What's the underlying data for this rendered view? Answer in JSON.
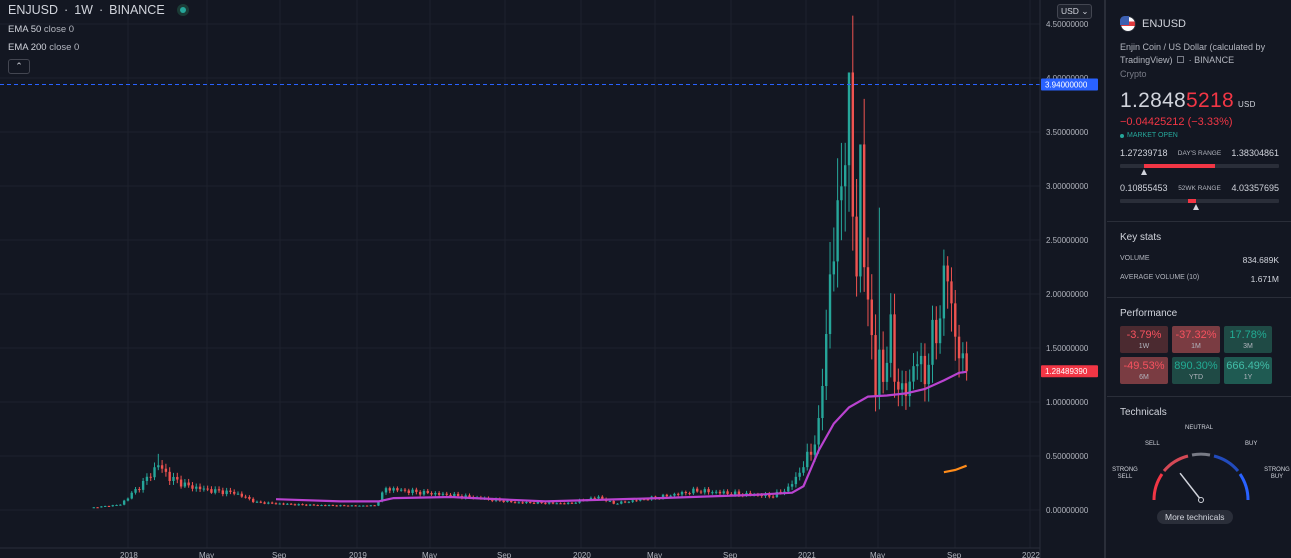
{
  "legend": {
    "symbol": "ENJUSD",
    "interval": "1W",
    "exchange": "BINANCE",
    "ema50_label": "EMA 50",
    "ema50_value": "close 0",
    "ema200_label": "EMA 200",
    "ema200_value": "close 0"
  },
  "currency_button": "USD",
  "price_axis": {
    "ticks": [
      "4.50000000",
      "4.00000000",
      "3.50000000",
      "3.00000000",
      "2.50000000",
      "2.00000000",
      "1.50000000",
      "1.00000000",
      "0.50000000",
      "0.00000000"
    ],
    "hline_label": "3.94000000",
    "current_label": "1.28489390"
  },
  "time_axis": {
    "labels": [
      "2018",
      "May",
      "Sep",
      "2019",
      "May",
      "Sep",
      "2020",
      "May",
      "Sep",
      "2021",
      "May",
      "Sep",
      "2022"
    ]
  },
  "colors": {
    "up": "#26a69a",
    "down": "#ef5350",
    "ema50": "#ba43d0",
    "ema200": "#ff8c1a",
    "hline": "#2962ff",
    "bg": "#131722"
  },
  "chart_data": {
    "type": "candlestick",
    "symbol": "ENJUSD",
    "interval": "1W",
    "y_range": [
      0,
      4.6
    ],
    "hline": 3.94,
    "last_price": 1.2849,
    "anchors": [
      {
        "w": 0,
        "c": 0.02
      },
      {
        "w": 8,
        "c": 0.05
      },
      {
        "w": 14,
        "c": 0.25
      },
      {
        "w": 18,
        "c": 0.42
      },
      {
        "w": 21,
        "c": 0.3
      },
      {
        "w": 26,
        "c": 0.22
      },
      {
        "w": 32,
        "c": 0.18
      },
      {
        "w": 38,
        "c": 0.16
      },
      {
        "w": 44,
        "c": 0.07
      },
      {
        "w": 54,
        "c": 0.05
      },
      {
        "w": 66,
        "c": 0.04
      },
      {
        "w": 75,
        "c": 0.04
      },
      {
        "w": 78,
        "c": 0.2
      },
      {
        "w": 85,
        "c": 0.17
      },
      {
        "w": 100,
        "c": 0.12
      },
      {
        "w": 112,
        "c": 0.07
      },
      {
        "w": 126,
        "c": 0.06
      },
      {
        "w": 134,
        "c": 0.12
      },
      {
        "w": 138,
        "c": 0.06
      },
      {
        "w": 150,
        "c": 0.12
      },
      {
        "w": 160,
        "c": 0.18
      },
      {
        "w": 170,
        "c": 0.15
      },
      {
        "w": 180,
        "c": 0.13
      },
      {
        "w": 184,
        "c": 0.2
      },
      {
        "w": 187,
        "c": 0.35
      },
      {
        "w": 190,
        "c": 0.55
      },
      {
        "w": 192,
        "c": 0.75
      },
      {
        "w": 194,
        "c": 1.7
      },
      {
        "w": 196,
        "c": 2.4
      },
      {
        "w": 198,
        "c": 3.1
      },
      {
        "w": 200,
        "c": 3.6
      },
      {
        "w": 202,
        "c": 2.3
      },
      {
        "w": 203,
        "c": 3.0
      },
      {
        "w": 204,
        "c": 2.4
      },
      {
        "w": 205,
        "c": 2.0
      },
      {
        "w": 206,
        "c": 1.55
      },
      {
        "w": 207,
        "c": 1.1
      },
      {
        "w": 208,
        "c": 1.4
      },
      {
        "w": 209,
        "c": 1.25
      },
      {
        "w": 211,
        "c": 1.6
      },
      {
        "w": 212,
        "c": 1.3
      },
      {
        "w": 214,
        "c": 1.05
      },
      {
        "w": 216,
        "c": 1.2
      },
      {
        "w": 218,
        "c": 1.4
      },
      {
        "w": 220,
        "c": 1.25
      },
      {
        "w": 222,
        "c": 1.55
      },
      {
        "w": 224,
        "c": 1.85
      },
      {
        "w": 226,
        "c": 2.25
      },
      {
        "w": 227,
        "c": 1.9
      },
      {
        "w": 228,
        "c": 1.6
      },
      {
        "w": 229,
        "c": 1.45
      },
      {
        "w": 230,
        "c": 1.33
      },
      {
        "w": 231,
        "c": 1.285
      }
    ],
    "spikes": [
      {
        "w": 200,
        "h": 4.03
      },
      {
        "w": 199,
        "h": 3.4
      },
      {
        "w": 203,
        "h": 3.25
      },
      {
        "w": 208,
        "h": 2.8
      },
      {
        "w": 18,
        "h": 0.52
      },
      {
        "w": 226,
        "h": 2.35
      }
    ],
    "ema50": [
      {
        "w": 49,
        "v": 0.1
      },
      {
        "w": 66,
        "v": 0.08
      },
      {
        "w": 76,
        "v": 0.08
      },
      {
        "w": 80,
        "v": 0.11
      },
      {
        "w": 95,
        "v": 0.12
      },
      {
        "w": 120,
        "v": 0.08
      },
      {
        "w": 150,
        "v": 0.11
      },
      {
        "w": 175,
        "v": 0.14
      },
      {
        "w": 185,
        "v": 0.16
      },
      {
        "w": 188,
        "v": 0.22
      },
      {
        "w": 192,
        "v": 0.55
      },
      {
        "w": 196,
        "v": 0.8
      },
      {
        "w": 200,
        "v": 0.95
      },
      {
        "w": 205,
        "v": 1.05
      },
      {
        "w": 210,
        "v": 1.06
      },
      {
        "w": 215,
        "v": 1.08
      },
      {
        "w": 220,
        "v": 1.12
      },
      {
        "w": 225,
        "v": 1.2
      },
      {
        "w": 229,
        "v": 1.27
      },
      {
        "w": 231,
        "v": 1.28
      }
    ],
    "ema200": [
      {
        "w": 225,
        "v": 0.35
      },
      {
        "w": 228,
        "v": 0.37
      },
      {
        "w": 231,
        "v": 0.41
      }
    ]
  },
  "panel": {
    "symbol": "ENJUSD",
    "description": "Enjin Coin / US Dollar (calculated by TradingView)",
    "exchange": "BINANCE",
    "category": "Crypto",
    "price_main": "1.2848",
    "price_tail": "5218",
    "currency": "USD",
    "change": "−0.04425212 (−3.33%)",
    "market_status": "MARKET OPEN",
    "day_low": "1.27239718",
    "day_label": "DAY'S RANGE",
    "day_high": "1.38304861",
    "day_fill_start": 0.15,
    "day_fill_end": 0.6,
    "day_pin": 0.15,
    "wk_low": "0.10855453",
    "wk_label": "52WK RANGE",
    "wk_high": "4.03357695",
    "wk_fill_start": 0.43,
    "wk_fill_end": 0.48,
    "wk_pin": 0.48,
    "key_stats_title": "Key stats",
    "volume_label": "VOLUME",
    "volume_value": "834.689K",
    "avg_volume_label": "AVERAGE VOLUME (10)",
    "avg_volume_value": "1.671M",
    "performance_title": "Performance",
    "performance": [
      {
        "value": "-3.79%",
        "label": "1W",
        "kind": "neg"
      },
      {
        "value": "-37.32%",
        "label": "1M",
        "kind": "neg2"
      },
      {
        "value": "17.78%",
        "label": "3M",
        "kind": "pos"
      },
      {
        "value": "-49.53%",
        "label": "6M",
        "kind": "neg2"
      },
      {
        "value": "890.30%",
        "label": "YTD",
        "kind": "pos"
      },
      {
        "value": "666.49%",
        "label": "1Y",
        "kind": "pos2"
      }
    ],
    "technicals_title": "Technicals",
    "gauge": {
      "neutral": "NEUTRAL",
      "sell": "SELL",
      "buy": "BUY",
      "strong_sell": "STRONG SELL",
      "strong_buy": "STRONG BUY",
      "needle_deg": -38
    },
    "more_technicals": "More technicals"
  }
}
